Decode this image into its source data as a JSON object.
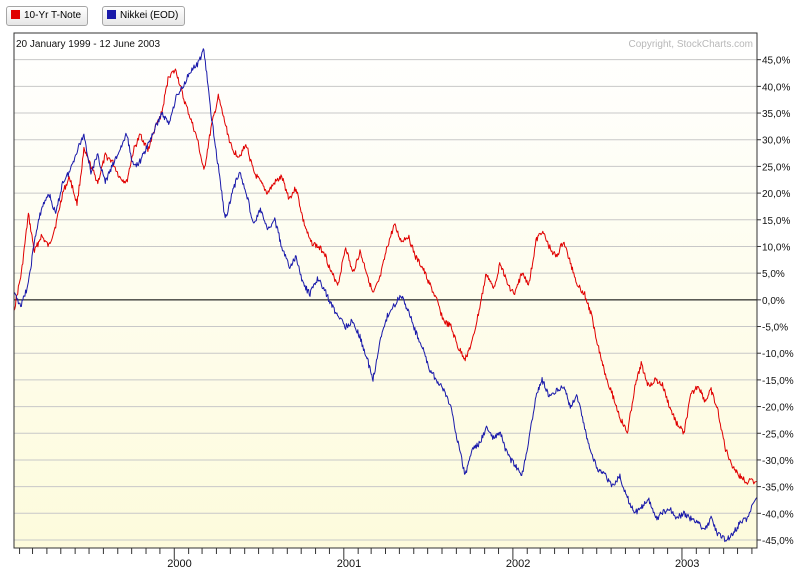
{
  "legend": [
    {
      "label": "10-Yr T-Note",
      "color": "#e00000"
    },
    {
      "label": "Nikkei (EOD)",
      "color": "#1a1aaa"
    }
  ],
  "date_range": "20 January 1999 - 12 June 2003",
  "copyright": "Copyright, StockCharts.com",
  "chart_data": {
    "type": "line",
    "subtitle": "20 January 1999 - 12 June 2003",
    "xlim": [
      "1999-01-20",
      "2003-06-12"
    ],
    "ylim": [
      -46.5,
      50
    ],
    "y_ticks": [
      45,
      40,
      35,
      30,
      25,
      20,
      15,
      10,
      5,
      0,
      -5,
      -10,
      -15,
      -20,
      -25,
      -30,
      -35,
      -40,
      -45
    ],
    "y_tick_labels": [
      "45,0%",
      "40,0%",
      "35,0%",
      "30,0%",
      "25,0%",
      "20,0%",
      "15,0%",
      "10,0%",
      "5,0%",
      "0,0%",
      "-5,0%",
      "-10,0%",
      "-15,0%",
      "-20,0%",
      "-25,0%",
      "-30,0%",
      "-35,0%",
      "-40,0%",
      "-45,0%"
    ],
    "x_tick_labels": [
      {
        "date": "2000-01-01",
        "label": "2000"
      },
      {
        "date": "2001-01-01",
        "label": "2001"
      },
      {
        "date": "2002-01-01",
        "label": "2002"
      },
      {
        "date": "2003-01-01",
        "label": "2003"
      }
    ],
    "reference_line": 0,
    "grid": true,
    "series": [
      {
        "name": "10-Yr T-Note",
        "color": "#e00000",
        "points": [
          [
            "1999-01-20",
            -2
          ],
          [
            "1999-02-05",
            5
          ],
          [
            "1999-02-20",
            16
          ],
          [
            "1999-03-05",
            9
          ],
          [
            "1999-03-20",
            12
          ],
          [
            "1999-04-05",
            10
          ],
          [
            "1999-04-20",
            14
          ],
          [
            "1999-05-05",
            20
          ],
          [
            "1999-05-20",
            23
          ],
          [
            "1999-06-05",
            18
          ],
          [
            "1999-06-20",
            28
          ],
          [
            "1999-07-05",
            25
          ],
          [
            "1999-07-20",
            22
          ],
          [
            "1999-08-05",
            27
          ],
          [
            "1999-08-20",
            26
          ],
          [
            "1999-09-05",
            23
          ],
          [
            "1999-09-20",
            22
          ],
          [
            "1999-10-05",
            28
          ],
          [
            "1999-10-20",
            31
          ],
          [
            "1999-11-05",
            28
          ],
          [
            "1999-11-20",
            32
          ],
          [
            "1999-12-05",
            35
          ],
          [
            "1999-12-20",
            42
          ],
          [
            "2000-01-05",
            43
          ],
          [
            "2000-01-20",
            38
          ],
          [
            "2000-02-05",
            34
          ],
          [
            "2000-02-20",
            30
          ],
          [
            "2000-03-05",
            24
          ],
          [
            "2000-03-20",
            32
          ],
          [
            "2000-04-05",
            38
          ],
          [
            "2000-04-20",
            33
          ],
          [
            "2000-05-05",
            28
          ],
          [
            "2000-05-20",
            27
          ],
          [
            "2000-06-05",
            29
          ],
          [
            "2000-06-20",
            24
          ],
          [
            "2000-07-05",
            22
          ],
          [
            "2000-07-20",
            20
          ],
          [
            "2000-08-05",
            22
          ],
          [
            "2000-08-20",
            23
          ],
          [
            "2000-09-05",
            19
          ],
          [
            "2000-09-20",
            21
          ],
          [
            "2000-10-05",
            15
          ],
          [
            "2000-10-20",
            11
          ],
          [
            "2000-11-05",
            10
          ],
          [
            "2000-11-20",
            9
          ],
          [
            "2000-12-05",
            5
          ],
          [
            "2000-12-20",
            3
          ],
          [
            "2001-01-05",
            10
          ],
          [
            "2001-01-20",
            5
          ],
          [
            "2001-02-05",
            9
          ],
          [
            "2001-02-20",
            5
          ],
          [
            "2001-03-05",
            1
          ],
          [
            "2001-03-20",
            4
          ],
          [
            "2001-04-05",
            10
          ],
          [
            "2001-04-20",
            14
          ],
          [
            "2001-05-05",
            11
          ],
          [
            "2001-05-20",
            12
          ],
          [
            "2001-06-05",
            8
          ],
          [
            "2001-06-20",
            6
          ],
          [
            "2001-07-05",
            3
          ],
          [
            "2001-07-20",
            0
          ],
          [
            "2001-08-05",
            -4
          ],
          [
            "2001-08-20",
            -5
          ],
          [
            "2001-09-05",
            -9
          ],
          [
            "2001-09-20",
            -11
          ],
          [
            "2001-10-05",
            -8
          ],
          [
            "2001-10-20",
            -2
          ],
          [
            "2001-11-05",
            5
          ],
          [
            "2001-11-20",
            2
          ],
          [
            "2001-12-05",
            7
          ],
          [
            "2001-12-20",
            3
          ],
          [
            "2002-01-05",
            1
          ],
          [
            "2002-01-20",
            5
          ],
          [
            "2002-02-05",
            3
          ],
          [
            "2002-02-20",
            11
          ],
          [
            "2002-03-05",
            13
          ],
          [
            "2002-03-20",
            10
          ],
          [
            "2002-04-05",
            8
          ],
          [
            "2002-04-20",
            11
          ],
          [
            "2002-05-05",
            7
          ],
          [
            "2002-05-20",
            3
          ],
          [
            "2002-06-05",
            1
          ],
          [
            "2002-06-20",
            -3
          ],
          [
            "2002-07-05",
            -9
          ],
          [
            "2002-07-20",
            -14
          ],
          [
            "2002-08-05",
            -18
          ],
          [
            "2002-08-20",
            -22
          ],
          [
            "2002-09-05",
            -25
          ],
          [
            "2002-09-20",
            -17
          ],
          [
            "2002-10-05",
            -12
          ],
          [
            "2002-10-20",
            -16
          ],
          [
            "2002-11-05",
            -15
          ],
          [
            "2002-11-20",
            -16
          ],
          [
            "2002-12-05",
            -20
          ],
          [
            "2002-12-20",
            -23
          ],
          [
            "2003-01-05",
            -25
          ],
          [
            "2003-01-20",
            -18
          ],
          [
            "2003-02-05",
            -16
          ],
          [
            "2003-02-20",
            -19
          ],
          [
            "2003-03-05",
            -17
          ],
          [
            "2003-03-20",
            -21
          ],
          [
            "2003-04-05",
            -28
          ],
          [
            "2003-04-20",
            -31
          ],
          [
            "2003-05-05",
            -33
          ],
          [
            "2003-05-20",
            -34
          ],
          [
            "2003-06-12",
            -34
          ]
        ]
      },
      {
        "name": "Nikkei (EOD)",
        "color": "#1a1aaa",
        "points": [
          [
            "1999-01-20",
            1
          ],
          [
            "1999-02-05",
            -1
          ],
          [
            "1999-02-20",
            3
          ],
          [
            "1999-03-05",
            11
          ],
          [
            "1999-03-20",
            17
          ],
          [
            "1999-04-05",
            20
          ],
          [
            "1999-04-20",
            16
          ],
          [
            "1999-05-05",
            22
          ],
          [
            "1999-05-20",
            24
          ],
          [
            "1999-06-05",
            28
          ],
          [
            "1999-06-20",
            31
          ],
          [
            "1999-07-05",
            24
          ],
          [
            "1999-07-20",
            27
          ],
          [
            "1999-08-05",
            22
          ],
          [
            "1999-08-20",
            25
          ],
          [
            "1999-09-05",
            28
          ],
          [
            "1999-09-20",
            31
          ],
          [
            "1999-10-05",
            25
          ],
          [
            "1999-10-20",
            26
          ],
          [
            "1999-11-05",
            29
          ],
          [
            "1999-11-20",
            32
          ],
          [
            "1999-12-05",
            35
          ],
          [
            "1999-12-20",
            33
          ],
          [
            "2000-01-05",
            38
          ],
          [
            "2000-01-20",
            40
          ],
          [
            "2000-02-05",
            43
          ],
          [
            "2000-02-20",
            44
          ],
          [
            "2000-03-05",
            47
          ],
          [
            "2000-03-20",
            35
          ],
          [
            "2000-04-05",
            25
          ],
          [
            "2000-04-20",
            15
          ],
          [
            "2000-05-05",
            20
          ],
          [
            "2000-05-20",
            24
          ],
          [
            "2000-06-05",
            20
          ],
          [
            "2000-06-20",
            14
          ],
          [
            "2000-07-05",
            17
          ],
          [
            "2000-07-20",
            13
          ],
          [
            "2000-08-05",
            15
          ],
          [
            "2000-08-20",
            10
          ],
          [
            "2000-09-05",
            6
          ],
          [
            "2000-09-20",
            8
          ],
          [
            "2000-10-05",
            3
          ],
          [
            "2000-10-20",
            1
          ],
          [
            "2000-11-05",
            4
          ],
          [
            "2000-11-20",
            2
          ],
          [
            "2000-12-05",
            -1
          ],
          [
            "2000-12-20",
            -3
          ],
          [
            "2001-01-05",
            -5
          ],
          [
            "2001-01-20",
            -4
          ],
          [
            "2001-02-05",
            -7
          ],
          [
            "2001-02-20",
            -11
          ],
          [
            "2001-03-05",
            -15
          ],
          [
            "2001-03-20",
            -8
          ],
          [
            "2001-04-05",
            -3
          ],
          [
            "2001-04-20",
            -1
          ],
          [
            "2001-05-05",
            1
          ],
          [
            "2001-05-20",
            -2
          ],
          [
            "2001-06-05",
            -6
          ],
          [
            "2001-06-20",
            -9
          ],
          [
            "2001-07-05",
            -13
          ],
          [
            "2001-07-20",
            -15
          ],
          [
            "2001-08-05",
            -17
          ],
          [
            "2001-08-20",
            -20
          ],
          [
            "2001-09-05",
            -27
          ],
          [
            "2001-09-20",
            -33
          ],
          [
            "2001-10-05",
            -28
          ],
          [
            "2001-10-20",
            -27
          ],
          [
            "2001-11-05",
            -24
          ],
          [
            "2001-11-20",
            -26
          ],
          [
            "2001-12-05",
            -25
          ],
          [
            "2001-12-20",
            -29
          ],
          [
            "2002-01-05",
            -31
          ],
          [
            "2002-01-20",
            -33
          ],
          [
            "2002-02-05",
            -26
          ],
          [
            "2002-02-20",
            -18
          ],
          [
            "2002-03-05",
            -15
          ],
          [
            "2002-03-20",
            -18
          ],
          [
            "2002-04-05",
            -17
          ],
          [
            "2002-04-20",
            -16
          ],
          [
            "2002-05-05",
            -20
          ],
          [
            "2002-05-20",
            -18
          ],
          [
            "2002-06-05",
            -24
          ],
          [
            "2002-06-20",
            -29
          ],
          [
            "2002-07-05",
            -32
          ],
          [
            "2002-07-20",
            -33
          ],
          [
            "2002-08-05",
            -35
          ],
          [
            "2002-08-20",
            -33
          ],
          [
            "2002-09-05",
            -37
          ],
          [
            "2002-09-20",
            -40
          ],
          [
            "2002-10-05",
            -39
          ],
          [
            "2002-10-20",
            -37
          ],
          [
            "2002-11-05",
            -41
          ],
          [
            "2002-11-20",
            -40
          ],
          [
            "2002-12-05",
            -39
          ],
          [
            "2002-12-20",
            -41
          ],
          [
            "2003-01-05",
            -40
          ],
          [
            "2003-01-20",
            -41
          ],
          [
            "2003-02-05",
            -42
          ],
          [
            "2003-02-20",
            -43
          ],
          [
            "2003-03-05",
            -41
          ],
          [
            "2003-03-20",
            -44
          ],
          [
            "2003-04-05",
            -45
          ],
          [
            "2003-04-20",
            -44
          ],
          [
            "2003-05-05",
            -42
          ],
          [
            "2003-05-20",
            -41
          ],
          [
            "2003-06-12",
            -37
          ]
        ]
      }
    ]
  }
}
